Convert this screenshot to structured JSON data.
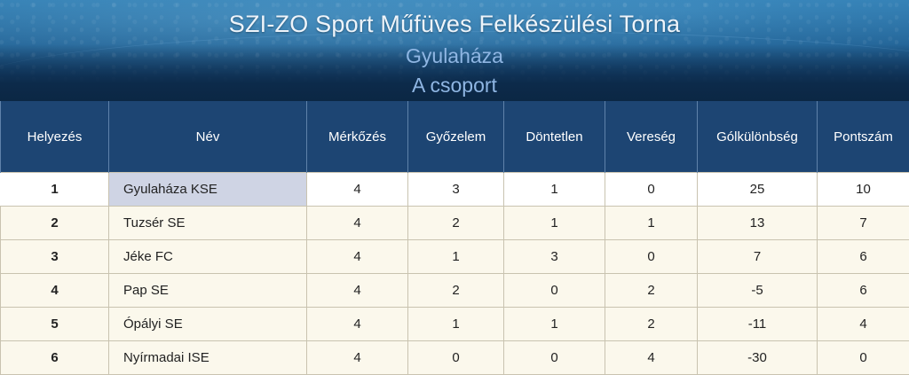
{
  "header": {
    "title": "SZI-ZO Sport Műfüves Felkészülési Torna",
    "location": "Gyulaháza",
    "group": "A csoport"
  },
  "colors": {
    "header_row": "#1d4573",
    "row_bg": "#fbf8ec",
    "highlight_name": "#cfd4e4",
    "subtitle": "#8fb6e3"
  },
  "table": {
    "columns": [
      "Helyezés",
      "Név",
      "Mérkőzés",
      "Győzelem",
      "Döntetlen",
      "Vereség",
      "Gólkülönbség",
      "Pontszám"
    ],
    "rows": [
      [
        "1",
        "Gyulaháza KSE",
        "4",
        "3",
        "1",
        "0",
        "25",
        "10"
      ],
      [
        "2",
        "Tuzsér SE",
        "4",
        "2",
        "1",
        "1",
        "13",
        "7"
      ],
      [
        "3",
        "Jéke FC",
        "4",
        "1",
        "3",
        "0",
        "7",
        "6"
      ],
      [
        "4",
        "Pap SE",
        "4",
        "2",
        "0",
        "2",
        "-5",
        "6"
      ],
      [
        "5",
        "Ópályi SE",
        "4",
        "1",
        "1",
        "2",
        "-11",
        "4"
      ],
      [
        "6",
        "Nyírmadai ISE",
        "4",
        "0",
        "0",
        "4",
        "-30",
        "0"
      ]
    ]
  }
}
